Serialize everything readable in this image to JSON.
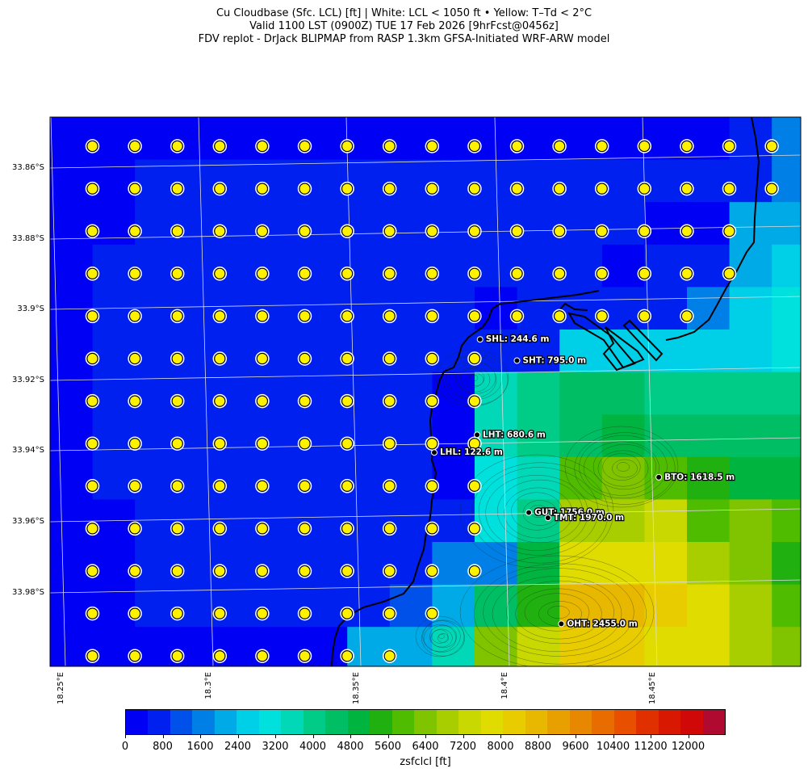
{
  "title": {
    "line1": "Cu Cloudbase (Sfc. LCL) [ft]  |  White: LCL < 1050 ft • Yellow: T–Td < 2°C",
    "line2": "Valid 1100 LST (0900Z) TUE 17 Feb 2026 [9hrFcst@0456z]",
    "line3": "FDV replot - DrJack BLIPMAP from RASP 1.3km GFSA-Initiated WRF-ARW model"
  },
  "lat_labels": [
    "33.86°S",
    "33.88°S",
    "33.9°S",
    "33.92°S",
    "33.94°S",
    "33.96°S",
    "33.98°S"
  ],
  "lon_labels": [
    "18.25°E",
    "18.3°E",
    "18.35°E",
    "18.4°E",
    "18.45°E"
  ],
  "stations": [
    {
      "label": "SHL: 244.6 m",
      "lon": 18.392,
      "lat": -33.9085
    },
    {
      "label": "SHT: 795.0 m",
      "lon": 18.4045,
      "lat": -33.9145
    },
    {
      "label": "LHT: 680.6 m",
      "lon": 18.391,
      "lat": -33.9355
    },
    {
      "label": "LHL: 122.6 m",
      "lon": 18.3765,
      "lat": -33.9405
    },
    {
      "label": "BTO: 1618.5 m",
      "lon": 18.4525,
      "lat": -33.9475
    },
    {
      "label": "GUT: 1756.0 m",
      "lon": 18.4085,
      "lat": -33.9575
    },
    {
      "label": "TMT: 1970.0 m",
      "lon": 18.415,
      "lat": -33.959
    },
    {
      "label": "OHT: 2455.0 m",
      "lon": 18.4195,
      "lat": -33.989
    }
  ],
  "colorbar": {
    "label": "zsfclcl [ft]",
    "ticks": [
      "0",
      "800",
      "1600",
      "2400",
      "3200",
      "4000",
      "4800",
      "5600",
      "6400",
      "7200",
      "8000",
      "8800",
      "9600",
      "10400",
      "11200",
      "12000"
    ],
    "colors": [
      "#0000f4",
      "#0020f0",
      "#0050ea",
      "#0080e6",
      "#00aae6",
      "#00cfe8",
      "#00e0dc",
      "#00d8b8",
      "#00cc88",
      "#00be64",
      "#00b440",
      "#20b010",
      "#50bc00",
      "#80c400",
      "#a8ce00",
      "#c8d800",
      "#e0dc00",
      "#e8cc00",
      "#e8b800",
      "#e8a000",
      "#e88800",
      "#e86c00",
      "#e85000",
      "#e03000",
      "#d81800",
      "#d00808",
      "#b00a30"
    ],
    "range": [
      0,
      12800
    ]
  },
  "colors": {
    "marker_fill": "#fff200",
    "coast": "#000000",
    "grid": "#d8d8d8"
  },
  "cloudbase_grid_bins": [
    [
      0,
      0,
      0,
      0,
      0,
      0,
      0,
      0,
      0,
      0,
      0,
      0,
      0,
      0,
      0,
      0,
      1,
      3,
      4
    ],
    [
      0,
      0,
      1,
      1,
      1,
      1,
      1,
      1,
      1,
      1,
      1,
      1,
      1,
      1,
      1,
      1,
      1,
      3,
      3
    ],
    [
      0,
      0,
      1,
      1,
      1,
      1,
      1,
      1,
      1,
      1,
      1,
      1,
      1,
      1,
      0,
      0,
      4,
      4,
      3
    ],
    [
      0,
      1,
      1,
      1,
      1,
      1,
      1,
      1,
      1,
      1,
      1,
      1,
      1,
      0,
      1,
      1,
      4,
      5,
      5
    ],
    [
      0,
      1,
      1,
      1,
      1,
      1,
      1,
      1,
      1,
      1,
      0,
      1,
      1,
      1,
      1,
      3,
      5,
      6,
      6
    ],
    [
      0,
      1,
      1,
      1,
      1,
      1,
      1,
      1,
      1,
      1,
      1,
      1,
      5,
      5,
      5,
      5,
      5,
      6,
      6
    ],
    [
      0,
      1,
      1,
      1,
      1,
      1,
      1,
      1,
      1,
      0,
      7,
      8,
      9,
      9,
      8,
      8,
      8,
      8,
      8
    ],
    [
      0,
      1,
      1,
      1,
      1,
      1,
      1,
      1,
      1,
      0,
      7,
      8,
      9,
      10,
      9,
      9,
      9,
      9,
      8
    ],
    [
      0,
      1,
      1,
      1,
      1,
      1,
      1,
      1,
      1,
      0,
      6,
      7,
      12,
      13,
      12,
      11,
      10,
      10,
      10
    ],
    [
      0,
      0,
      1,
      1,
      1,
      1,
      1,
      1,
      1,
      1,
      6,
      8,
      14,
      14,
      15,
      12,
      13,
      12,
      12
    ],
    [
      0,
      0,
      1,
      1,
      1,
      1,
      1,
      1,
      1,
      3,
      3,
      10,
      16,
      16,
      16,
      14,
      13,
      11,
      11
    ],
    [
      0,
      0,
      1,
      1,
      1,
      1,
      1,
      1,
      2,
      4,
      9,
      11,
      18,
      18,
      17,
      16,
      14,
      12,
      11
    ],
    [
      0,
      0,
      0,
      0,
      0,
      0,
      0,
      4,
      4,
      7,
      13,
      15,
      17,
      17,
      16,
      16,
      14,
      13,
      12
    ]
  ],
  "markers_present": [
    [
      1,
      1,
      1,
      1,
      1,
      1,
      1,
      1,
      1,
      1,
      1,
      1,
      1,
      1,
      1,
      1,
      1,
      0,
      0
    ],
    [
      1,
      1,
      1,
      1,
      1,
      1,
      1,
      1,
      1,
      1,
      1,
      1,
      1,
      1,
      1,
      1,
      1,
      0,
      0
    ],
    [
      1,
      1,
      1,
      1,
      1,
      1,
      1,
      1,
      1,
      1,
      1,
      1,
      1,
      1,
      1,
      1,
      0,
      0,
      0
    ],
    [
      1,
      1,
      1,
      1,
      1,
      1,
      1,
      1,
      1,
      1,
      1,
      1,
      1,
      1,
      1,
      1,
      0,
      0,
      0
    ],
    [
      1,
      1,
      1,
      1,
      1,
      1,
      1,
      1,
      1,
      1,
      1,
      1,
      1,
      1,
      1,
      0,
      0,
      0,
      0
    ],
    [
      1,
      1,
      1,
      1,
      1,
      1,
      1,
      1,
      1,
      1,
      0,
      0,
      0,
      0,
      0,
      0,
      0,
      0,
      0
    ],
    [
      1,
      1,
      1,
      1,
      1,
      1,
      1,
      1,
      1,
      1,
      0,
      0,
      0,
      0,
      0,
      0,
      0,
      0,
      0
    ],
    [
      1,
      1,
      1,
      1,
      1,
      1,
      1,
      1,
      1,
      1,
      0,
      0,
      0,
      0,
      0,
      0,
      0,
      0,
      0
    ],
    [
      1,
      1,
      1,
      1,
      1,
      1,
      1,
      1,
      1,
      1,
      0,
      0,
      0,
      0,
      0,
      0,
      0,
      0,
      0
    ],
    [
      1,
      1,
      1,
      1,
      1,
      1,
      1,
      1,
      1,
      1,
      0,
      0,
      0,
      0,
      0,
      0,
      0,
      0,
      0
    ],
    [
      1,
      1,
      1,
      1,
      1,
      1,
      1,
      1,
      1,
      1,
      0,
      0,
      0,
      0,
      0,
      0,
      0,
      0,
      0
    ],
    [
      1,
      1,
      1,
      1,
      1,
      1,
      1,
      1,
      1,
      0,
      0,
      0,
      0,
      0,
      0,
      0,
      0,
      0,
      0
    ],
    [
      1,
      1,
      1,
      1,
      1,
      1,
      1,
      1,
      0,
      0,
      0,
      0,
      0,
      0,
      0,
      0,
      0,
      0,
      0
    ]
  ]
}
